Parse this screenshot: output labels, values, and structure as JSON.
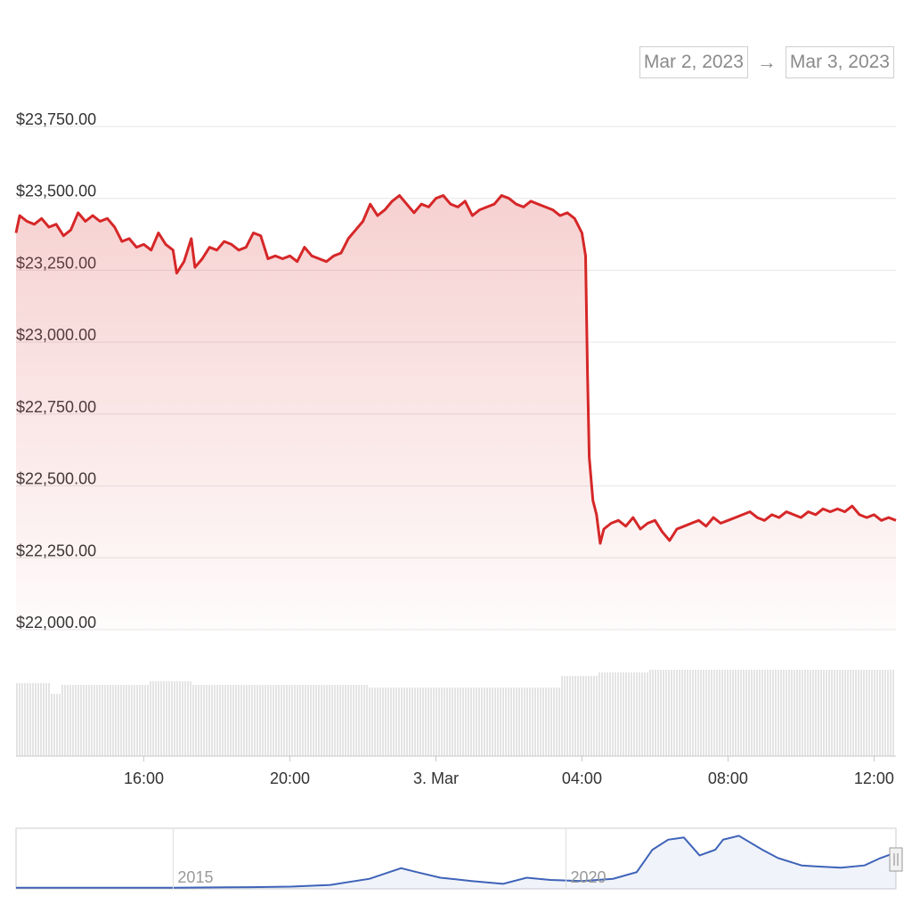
{
  "range_selector": {
    "from": "Mar 2, 2023",
    "arrow": "→",
    "to": "Mar 3, 2023"
  },
  "colors": {
    "price_line": "#d62728",
    "volume_bar": "#c8c8c8",
    "navigator_line": "#3e63b8",
    "grid": "#e6e6e6"
  },
  "chart_data": {
    "type": "line",
    "y_tick_labels": [
      "$23,750.00",
      "$23,500.00",
      "$23,250.00",
      "$23,000.00",
      "$22,750.00",
      "$22,500.00",
      "$22,250.00",
      "$22,000.00"
    ],
    "y_ticks": [
      23750,
      23500,
      23250,
      23000,
      22750,
      22500,
      22250,
      22000
    ],
    "ylim": [
      22000,
      23750
    ],
    "x_tick_labels": [
      "16:00",
      "20:00",
      "3. Mar",
      "04:00",
      "08:00",
      "12:00"
    ],
    "x_ticks": [
      16,
      20,
      24,
      28,
      32,
      36
    ],
    "xlim": [
      12.5,
      36.6
    ],
    "series": [
      {
        "values": [
          [
            12.5,
            23380
          ],
          [
            12.6,
            23440
          ],
          [
            12.8,
            23420
          ],
          [
            13.0,
            23410
          ],
          [
            13.2,
            23430
          ],
          [
            13.4,
            23400
          ],
          [
            13.6,
            23410
          ],
          [
            13.8,
            23370
          ],
          [
            14.0,
            23390
          ],
          [
            14.2,
            23450
          ],
          [
            14.4,
            23420
          ],
          [
            14.6,
            23440
          ],
          [
            14.8,
            23420
          ],
          [
            15.0,
            23430
          ],
          [
            15.2,
            23400
          ],
          [
            15.4,
            23350
          ],
          [
            15.6,
            23360
          ],
          [
            15.8,
            23330
          ],
          [
            16.0,
            23340
          ],
          [
            16.2,
            23320
          ],
          [
            16.4,
            23380
          ],
          [
            16.6,
            23340
          ],
          [
            16.8,
            23320
          ],
          [
            16.9,
            23240
          ],
          [
            17.1,
            23280
          ],
          [
            17.3,
            23360
          ],
          [
            17.4,
            23260
          ],
          [
            17.6,
            23290
          ],
          [
            17.8,
            23330
          ],
          [
            18.0,
            23320
          ],
          [
            18.2,
            23350
          ],
          [
            18.4,
            23340
          ],
          [
            18.6,
            23320
          ],
          [
            18.8,
            23330
          ],
          [
            19.0,
            23380
          ],
          [
            19.2,
            23370
          ],
          [
            19.4,
            23290
          ],
          [
            19.6,
            23300
          ],
          [
            19.8,
            23290
          ],
          [
            20.0,
            23300
          ],
          [
            20.2,
            23280
          ],
          [
            20.4,
            23330
          ],
          [
            20.6,
            23300
          ],
          [
            20.8,
            23290
          ],
          [
            21.0,
            23280
          ],
          [
            21.2,
            23300
          ],
          [
            21.4,
            23310
          ],
          [
            21.6,
            23360
          ],
          [
            21.8,
            23390
          ],
          [
            22.0,
            23420
          ],
          [
            22.2,
            23480
          ],
          [
            22.4,
            23440
          ],
          [
            22.6,
            23460
          ],
          [
            22.8,
            23490
          ],
          [
            23.0,
            23510
          ],
          [
            23.2,
            23480
          ],
          [
            23.4,
            23450
          ],
          [
            23.6,
            23480
          ],
          [
            23.8,
            23470
          ],
          [
            24.0,
            23500
          ],
          [
            24.2,
            23510
          ],
          [
            24.4,
            23480
          ],
          [
            24.6,
            23470
          ],
          [
            24.8,
            23490
          ],
          [
            25.0,
            23440
          ],
          [
            25.2,
            23460
          ],
          [
            25.4,
            23470
          ],
          [
            25.6,
            23480
          ],
          [
            25.8,
            23510
          ],
          [
            26.0,
            23500
          ],
          [
            26.2,
            23480
          ],
          [
            26.4,
            23470
          ],
          [
            26.6,
            23490
          ],
          [
            26.8,
            23480
          ],
          [
            27.0,
            23470
          ],
          [
            27.2,
            23460
          ],
          [
            27.4,
            23440
          ],
          [
            27.6,
            23450
          ],
          [
            27.8,
            23430
          ],
          [
            28.0,
            23380
          ],
          [
            28.1,
            23300
          ],
          [
            28.15,
            22900
          ],
          [
            28.2,
            22600
          ],
          [
            28.3,
            22450
          ],
          [
            28.4,
            22400
          ],
          [
            28.5,
            22300
          ],
          [
            28.6,
            22350
          ],
          [
            28.8,
            22370
          ],
          [
            29.0,
            22380
          ],
          [
            29.2,
            22360
          ],
          [
            29.4,
            22390
          ],
          [
            29.6,
            22350
          ],
          [
            29.8,
            22370
          ],
          [
            30.0,
            22380
          ],
          [
            30.2,
            22340
          ],
          [
            30.4,
            22310
          ],
          [
            30.6,
            22350
          ],
          [
            30.8,
            22360
          ],
          [
            31.0,
            22370
          ],
          [
            31.2,
            22380
          ],
          [
            31.4,
            22360
          ],
          [
            31.6,
            22390
          ],
          [
            31.8,
            22370
          ],
          [
            32.0,
            22380
          ],
          [
            32.2,
            22390
          ],
          [
            32.4,
            22400
          ],
          [
            32.6,
            22410
          ],
          [
            32.8,
            22390
          ],
          [
            33.0,
            22380
          ],
          [
            33.2,
            22400
          ],
          [
            33.4,
            22390
          ],
          [
            33.6,
            22410
          ],
          [
            33.8,
            22400
          ],
          [
            34.0,
            22390
          ],
          [
            34.2,
            22410
          ],
          [
            34.4,
            22400
          ],
          [
            34.6,
            22420
          ],
          [
            34.8,
            22410
          ],
          [
            35.0,
            22420
          ],
          [
            35.2,
            22410
          ],
          [
            35.4,
            22430
          ],
          [
            35.6,
            22400
          ],
          [
            35.8,
            22390
          ],
          [
            36.0,
            22400
          ],
          [
            36.2,
            22380
          ],
          [
            36.4,
            22390
          ],
          [
            36.6,
            22380
          ]
        ]
      }
    ],
    "grid": true,
    "legend": false
  },
  "navigator": {
    "labels": [
      "2015",
      "2020"
    ],
    "values": [
      [
        2013.0,
        0.02
      ],
      [
        2014.0,
        0.02
      ],
      [
        2015.0,
        0.02
      ],
      [
        2016.0,
        0.03
      ],
      [
        2016.5,
        0.04
      ],
      [
        2017.0,
        0.07
      ],
      [
        2017.5,
        0.18
      ],
      [
        2017.9,
        0.37
      ],
      [
        2018.1,
        0.3
      ],
      [
        2018.4,
        0.2
      ],
      [
        2018.8,
        0.14
      ],
      [
        2019.2,
        0.09
      ],
      [
        2019.5,
        0.2
      ],
      [
        2019.8,
        0.16
      ],
      [
        2020.2,
        0.14
      ],
      [
        2020.6,
        0.18
      ],
      [
        2020.9,
        0.3
      ],
      [
        2021.1,
        0.7
      ],
      [
        2021.3,
        0.88
      ],
      [
        2021.5,
        0.92
      ],
      [
        2021.7,
        0.6
      ],
      [
        2021.9,
        0.7
      ],
      [
        2022.0,
        0.88
      ],
      [
        2022.2,
        0.95
      ],
      [
        2022.5,
        0.7
      ],
      [
        2022.7,
        0.55
      ],
      [
        2023.0,
        0.42
      ],
      [
        2023.2,
        0.4
      ],
      [
        2023.5,
        0.38
      ],
      [
        2023.8,
        0.42
      ],
      [
        2024.0,
        0.55
      ],
      [
        2024.2,
        0.65
      ]
    ]
  }
}
